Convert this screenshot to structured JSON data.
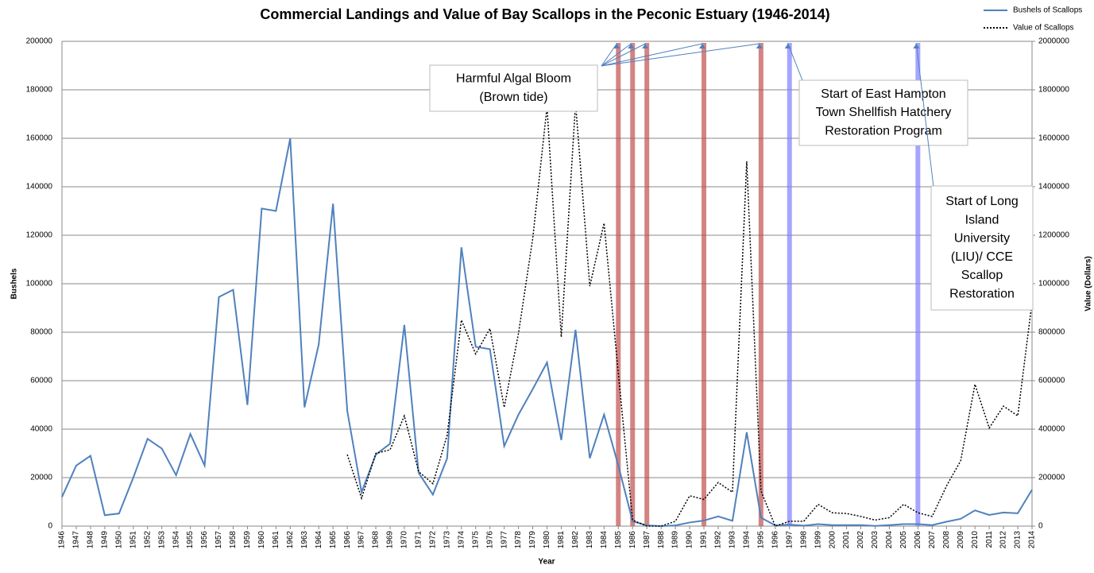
{
  "chart_data": {
    "type": "line",
    "title": "Commercial Landings and Value of Bay Scallops in the Peconic Estuary (1946-2014)",
    "x_label": "Year",
    "y_label": "Bushels",
    "y2_label": "Value (Dollars)",
    "x": [
      1946,
      1947,
      1948,
      1949,
      1950,
      1951,
      1952,
      1953,
      1954,
      1955,
      1956,
      1957,
      1958,
      1959,
      1960,
      1961,
      1962,
      1963,
      1964,
      1965,
      1966,
      1967,
      1968,
      1969,
      1970,
      1971,
      1972,
      1973,
      1974,
      1975,
      1976,
      1977,
      1978,
      1979,
      1980,
      1981,
      1982,
      1983,
      1984,
      1985,
      1986,
      1987,
      1988,
      1989,
      1990,
      1991,
      1992,
      1993,
      1994,
      1995,
      1996,
      1997,
      1998,
      1999,
      2000,
      2001,
      2002,
      2003,
      2004,
      2005,
      2006,
      2007,
      2008,
      2009,
      2010,
      2011,
      2012,
      2013,
      2014
    ],
    "xlim": [
      1946,
      2014
    ],
    "ylim": [
      0,
      200000
    ],
    "yticks": [
      0,
      20000,
      40000,
      60000,
      80000,
      100000,
      120000,
      140000,
      160000,
      180000,
      200000
    ],
    "y2lim": [
      0,
      2000000
    ],
    "y2ticks": [
      0,
      200000,
      400000,
      600000,
      800000,
      1000000,
      1200000,
      1400000,
      1600000,
      1800000,
      2000000
    ],
    "grid": true,
    "legend": "top-right",
    "series": [
      {
        "name": "Bushels of Scallops",
        "color": "#4f81bd",
        "dash": "solid",
        "values": [
          12000,
          25000,
          29000,
          4500,
          5200,
          20000,
          36000,
          32000,
          21000,
          38000,
          25000,
          94500,
          97500,
          50000,
          131000,
          130000,
          160000,
          49000,
          75000,
          133000,
          47500,
          14000,
          29500,
          34000,
          83000,
          22000,
          13000,
          28000,
          115000,
          74000,
          73000,
          33000,
          46000,
          56500,
          67500,
          35500,
          81000,
          28000,
          46000,
          25000,
          2000,
          300,
          0,
          300,
          1500,
          2300,
          4000,
          2200,
          38700,
          3500,
          300,
          600,
          200,
          800,
          400,
          400,
          400,
          100,
          400,
          800,
          800,
          400,
          1800,
          3000,
          6500,
          4600,
          5600,
          5300,
          15000
        ]
      },
      {
        "name": "Value of Scallops",
        "color": "#000000",
        "dash": "dotted",
        "axis": "y2",
        "values": [
          null,
          null,
          null,
          null,
          null,
          null,
          null,
          null,
          null,
          null,
          null,
          null,
          null,
          null,
          null,
          null,
          null,
          null,
          null,
          null,
          295000,
          115000,
          300000,
          315000,
          455000,
          225000,
          175000,
          375000,
          850000,
          710000,
          815000,
          490000,
          795000,
          1187000,
          1730000,
          780000,
          1745000,
          990000,
          1250000,
          630000,
          25000,
          0,
          0,
          20000,
          125000,
          110000,
          180000,
          140000,
          1505000,
          145000,
          0,
          20000,
          20000,
          90000,
          55000,
          52000,
          40000,
          25000,
          35000,
          90000,
          55000,
          40000,
          165000,
          270000,
          585000,
          405000,
          495000,
          455000,
          925000
        ]
      }
    ],
    "annotations": [
      {
        "lines": [
          "Harmful Algal Bloom",
          "(Brown tide)"
        ],
        "color": "#c0504d",
        "years": [
          1985,
          1986,
          1987,
          1991,
          1995
        ]
      },
      {
        "lines": [
          "Start of East Hampton",
          "Town Shellfish Hatchery",
          "Restoration Program"
        ],
        "color": "#7f7fff",
        "years": [
          1997
        ]
      },
      {
        "lines": [
          "Start of Long",
          "Island",
          "University",
          "(LIU)/ CCE",
          "Scallop",
          "Restoration"
        ],
        "color": "#7f7fff",
        "years": [
          2006
        ]
      }
    ]
  }
}
